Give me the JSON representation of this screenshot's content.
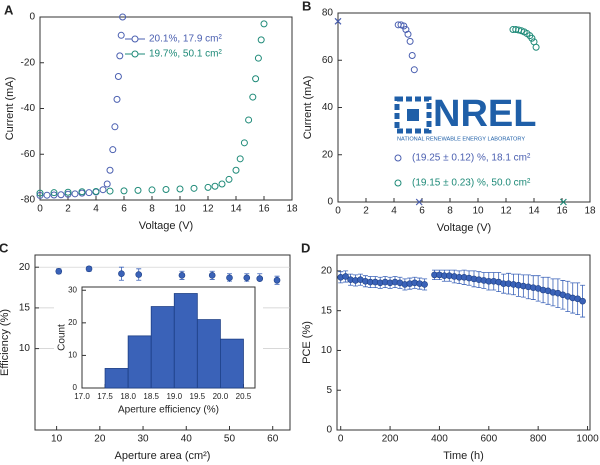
{
  "chart_data": [
    {
      "type": "scatter",
      "panel": "A",
      "xlabel": "Voltage (V)",
      "ylabel": "Current (mA)",
      "xlim": [
        0,
        18
      ],
      "ylim": [
        -80,
        0
      ],
      "xticks": [
        0,
        2,
        4,
        6,
        8,
        10,
        12,
        14,
        16,
        18
      ],
      "yticks": [
        -80,
        -60,
        -40,
        -20,
        0
      ],
      "grid": false,
      "marker": "open-circle",
      "legend": "upper center",
      "series": [
        {
          "name": "20.1%, 17.9 cm²",
          "color": "#4a5fb0",
          "x": [
            0,
            0.5,
            1,
            1.5,
            2,
            2.5,
            3,
            3.5,
            4,
            4.5,
            4.8,
            5.0,
            5.2,
            5.35,
            5.5,
            5.6,
            5.7,
            5.8,
            5.9
          ],
          "values": [
            -78,
            -77.9,
            -77.8,
            -77.7,
            -77.5,
            -77.3,
            -77,
            -76.8,
            -76.5,
            -75.5,
            -73,
            -67,
            -58,
            -48,
            -36,
            -26,
            -17,
            -8,
            0
          ]
        },
        {
          "name": "19.7%, 50.1 cm²",
          "color": "#1e8a78",
          "x": [
            0,
            1,
            2,
            3,
            4,
            5,
            6,
            7,
            8,
            9,
            10,
            11,
            12,
            12.5,
            13,
            13.5,
            14,
            14.3,
            14.6,
            14.9,
            15.2,
            15.4,
            15.6,
            15.8,
            16
          ],
          "values": [
            -77,
            -76.8,
            -76.6,
            -76.4,
            -76.3,
            -76.1,
            -76,
            -75.8,
            -75.6,
            -75.4,
            -75.2,
            -74.9,
            -74.5,
            -74,
            -73,
            -71,
            -67,
            -62,
            -55,
            -45,
            -35,
            -27,
            -18,
            -10,
            -3
          ]
        }
      ]
    },
    {
      "type": "scatter",
      "panel": "B",
      "xlabel": "Voltage (V)",
      "ylabel": "Current (mA)",
      "xlim": [
        0,
        18
      ],
      "ylim": [
        0,
        80
      ],
      "xticks": [
        0,
        2,
        4,
        6,
        8,
        10,
        12,
        14,
        16,
        18
      ],
      "yticks": [
        0,
        20,
        40,
        60,
        80
      ],
      "grid": false,
      "marker": "open-circle",
      "legend": "lower center",
      "logo_text": "NREL",
      "logo_subtext": "NATIONAL RENEWABLE ENERGY LABORATORY",
      "series": [
        {
          "name": "(19.25 ± 0.12) %, 18.1 cm²",
          "color": "#4a5fb0",
          "x": [
            4.3,
            4.5,
            4.7,
            4.85,
            5.0,
            5.15,
            5.3,
            5.45
          ],
          "values": [
            75,
            75,
            74.5,
            73,
            71,
            68,
            62,
            56
          ],
          "cross_x": [
            0,
            5.8
          ],
          "cross_values": [
            76.5,
            0
          ]
        },
        {
          "name": "(19.15 ± 0.23) %, 50.0 cm²",
          "color": "#1e8a78",
          "x": [
            12.5,
            12.7,
            12.9,
            13.1,
            13.3,
            13.5,
            13.7,
            13.85,
            14.0,
            14.15
          ],
          "values": [
            73,
            73,
            72.8,
            72.5,
            72,
            71.3,
            70.4,
            69.3,
            67.8,
            65.5
          ],
          "cross_x": [
            16.1
          ],
          "cross_values": [
            0
          ]
        }
      ]
    },
    {
      "type": "errorbar",
      "panel": "C",
      "xlabel": "Aperture area (cm²)",
      "ylabel": "Efficiency (%)",
      "xlim": [
        5,
        64
      ],
      "ylim": [
        0,
        21.5
      ],
      "xticks": [
        10,
        20,
        30,
        40,
        50,
        60
      ],
      "yticks": [
        10,
        15,
        20
      ],
      "grid": true,
      "color": "#3a62b8",
      "x": [
        10.5,
        17.5,
        25,
        29,
        39,
        46,
        50,
        54,
        57,
        61
      ],
      "values": [
        19.5,
        19.8,
        19.2,
        19.1,
        19.0,
        19.0,
        18.7,
        18.7,
        18.6,
        18.4
      ],
      "errors": [
        0.3,
        0.3,
        0.8,
        0.7,
        0.5,
        0.5,
        0.5,
        0.5,
        0.6,
        0.5
      ]
    },
    {
      "type": "histogram",
      "xlabel": "Aperture efficiency (%)",
      "ylabel": "Count",
      "xlim": [
        17,
        20.75
      ],
      "ylim": [
        0,
        31
      ],
      "xticks": [
        {
          "value": 17,
          "label": "17.0"
        },
        17.5,
        {
          "value": 18,
          "label": "18.0"
        },
        18.5,
        {
          "value": 19,
          "label": "19.0"
        },
        19.5,
        {
          "value": 20,
          "label": "20.0"
        },
        20.5
      ],
      "yticks": [
        0,
        10,
        20,
        30
      ],
      "grid": false,
      "color": "#3a62b8",
      "bins": [
        17.5,
        18,
        18.5,
        19,
        19.5,
        20,
        20.5
      ],
      "counts": [
        6,
        16,
        25,
        29,
        21,
        15
      ]
    },
    {
      "type": "errorbar",
      "panel": "D",
      "xlabel": "Time (h)",
      "ylabel": "PCE (%)",
      "xlim": [
        -15,
        1010
      ],
      "ylim": [
        0,
        22
      ],
      "xticks": [
        0,
        200,
        400,
        600,
        800,
        1000
      ],
      "yticks": [
        0,
        5,
        10,
        15,
        20
      ],
      "grid": false,
      "color": "#3a62b8",
      "x": [
        0,
        20,
        40,
        60,
        80,
        100,
        120,
        140,
        160,
        180,
        200,
        220,
        240,
        260,
        280,
        300,
        320,
        340,
        380,
        400,
        420,
        440,
        460,
        480,
        500,
        520,
        540,
        560,
        580,
        600,
        620,
        640,
        660,
        680,
        700,
        720,
        740,
        760,
        780,
        800,
        820,
        840,
        860,
        880,
        900,
        920,
        940,
        960,
        980
      ],
      "values": [
        19.2,
        19.3,
        18.9,
        18.8,
        18.9,
        18.7,
        18.6,
        18.6,
        18.5,
        18.6,
        18.5,
        18.6,
        18.5,
        18.3,
        18.4,
        18.5,
        18.4,
        18.3,
        19.5,
        19.5,
        19.4,
        19.4,
        19.3,
        19.2,
        19.2,
        19.1,
        19.0,
        18.9,
        18.8,
        18.7,
        18.7,
        18.6,
        18.4,
        18.4,
        18.3,
        18.2,
        18.1,
        18.0,
        17.9,
        17.8,
        17.6,
        17.5,
        17.3,
        17.2,
        17.0,
        16.8,
        16.6,
        16.5,
        16.2
      ],
      "errors": [
        0.7,
        0.7,
        0.7,
        0.7,
        0.7,
        0.7,
        0.7,
        0.7,
        0.7,
        0.7,
        0.7,
        0.7,
        0.7,
        0.7,
        0.7,
        0.7,
        0.7,
        0.7,
        0.6,
        0.6,
        0.7,
        0.7,
        0.8,
        0.8,
        0.9,
        0.9,
        1.0,
        1.0,
        1.0,
        1.1,
        1.1,
        1.2,
        1.2,
        1.3,
        1.3,
        1.4,
        1.4,
        1.5,
        1.5,
        1.6,
        1.6,
        1.7,
        1.7,
        1.8,
        1.8,
        1.9,
        1.9,
        2.0,
        2.0
      ]
    }
  ]
}
